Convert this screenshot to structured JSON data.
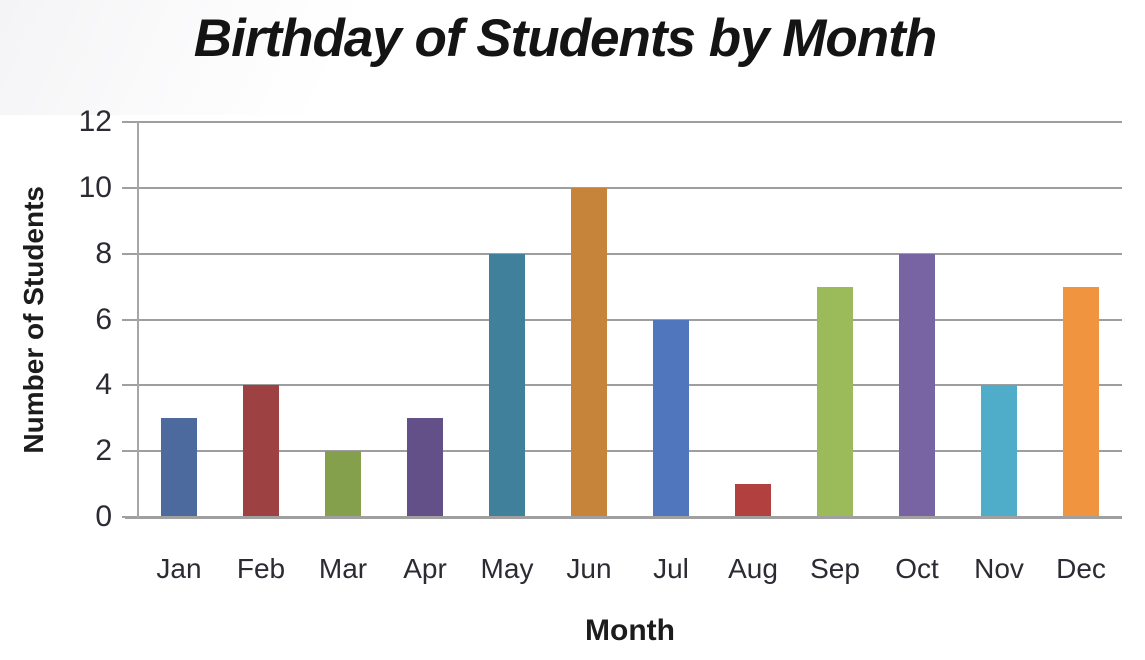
{
  "chart_data": {
    "type": "bar",
    "title": "Birthday of Students by Month",
    "xlabel": "Month",
    "ylabel": "Number of Students",
    "categories": [
      "Jan",
      "Feb",
      "Mar",
      "Apr",
      "May",
      "Jun",
      "Jul",
      "Aug",
      "Sep",
      "Oct",
      "Nov",
      "Dec"
    ],
    "values": [
      3,
      4,
      2,
      3,
      8,
      10,
      6,
      1,
      7,
      8,
      4,
      7
    ],
    "bar_colors": [
      "#4c6a9e",
      "#9e4142",
      "#84a04d",
      "#645088",
      "#40809b",
      "#c58439",
      "#5076bd",
      "#b2403f",
      "#9bba59",
      "#7863a3",
      "#4fadc9",
      "#f0943f"
    ],
    "ylim": [
      0,
      12
    ],
    "yticks": [
      0,
      2,
      4,
      6,
      8,
      10,
      12
    ],
    "grid": true,
    "legend": "none",
    "styles": {
      "grid_color": "#9e9e9e",
      "axis_color": "#a0a0a0",
      "tick_text_color": "#2b2b33",
      "title_color": "#141414",
      "background": "#ffffff"
    }
  }
}
